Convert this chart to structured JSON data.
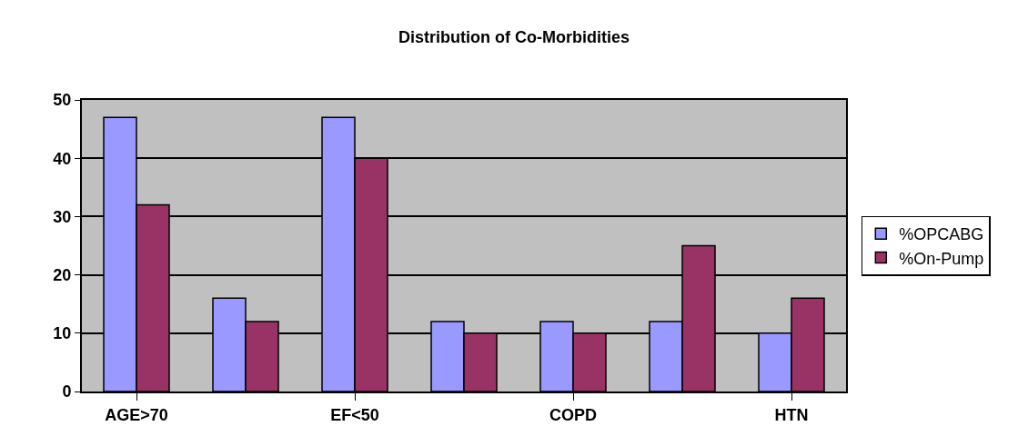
{
  "chart_data": {
    "type": "bar",
    "title": "Distribution of Co-Morbidities",
    "categories": [
      "AGE>70",
      null,
      "EF<50",
      null,
      "COPD",
      null,
      "HTN"
    ],
    "series": [
      {
        "name": "%OPCABG",
        "color": "#9999ff",
        "values": [
          47,
          16,
          47,
          12,
          12,
          12,
          10
        ]
      },
      {
        "name": "%On-Pump",
        "color": "#993366",
        "values": [
          32,
          12,
          40,
          10,
          10,
          25,
          16
        ]
      }
    ],
    "ylim": [
      0,
      50
    ],
    "yticks": [
      0,
      10,
      20,
      30,
      40,
      50
    ],
    "grid": "y",
    "legend": "right"
  }
}
